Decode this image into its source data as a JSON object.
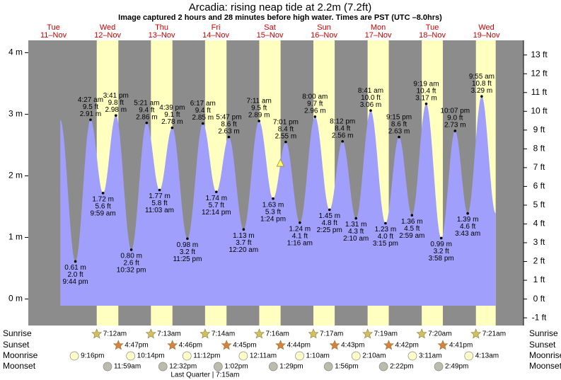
{
  "chart_data": {
    "type": "tide",
    "title": "Arcadia: rising  neap tide at 2.2m (7.2ft)",
    "subtitle": "Image captured 2 hours and 28 minutes before high water. Times are PST (UTC –8.0hrs)",
    "ylim": [
      -0.43,
      4.2
    ],
    "yticks": [
      {
        "value": 0,
        "label": "0 m"
      },
      {
        "value": 1,
        "label": "1 m"
      },
      {
        "value": 2,
        "label": "2 m"
      },
      {
        "value": 3,
        "label": "3 m"
      },
      {
        "value": 4,
        "label": "4 m"
      }
    ],
    "y2lim": [
      -1.41,
      13.78
    ],
    "y2ticks": [
      {
        "value": -1,
        "label": "-1 ft"
      },
      {
        "value": 0,
        "label": "0 ft"
      },
      {
        "value": 1,
        "label": "1 ft"
      },
      {
        "value": 2,
        "label": "2 ft"
      },
      {
        "value": 3,
        "label": "3 ft"
      },
      {
        "value": 4,
        "label": "4 ft"
      },
      {
        "value": 5,
        "label": "5 ft"
      },
      {
        "value": 6,
        "label": "6 ft"
      },
      {
        "value": 7,
        "label": "7 ft"
      },
      {
        "value": 8,
        "label": "8 ft"
      },
      {
        "value": 9,
        "label": "9 ft"
      },
      {
        "value": 10,
        "label": "10 ft"
      },
      {
        "value": 11,
        "label": "11 ft"
      },
      {
        "value": 12,
        "label": "12 ft"
      },
      {
        "value": 13,
        "label": "13 ft"
      }
    ],
    "row_labels": {
      "sunrise": "Sunrise",
      "sunset": "Sunset",
      "moonrise": "Moonrise",
      "moonset": "Moonset"
    },
    "colors": {
      "water": "#a0a0fc",
      "night": "#8c8c8c",
      "day": "#ffffc0",
      "date": "#cc0000",
      "sunrise": "#cfc25a",
      "sunset": "#d9803c",
      "moonrise": "#ffffc8",
      "moonset": "#bcbcac"
    },
    "days": [
      {
        "weekday": "Tue",
        "date": "11–Nov",
        "moonrise": "9:16pm",
        "tides": [
          {
            "time": "9:44 pm",
            "height_m": 0.61,
            "label_m": "0.61 m",
            "height_ft": 2.0,
            "label_ft": "2.0 ft"
          }
        ]
      },
      {
        "weekday": "Wed",
        "date": "12–Nov",
        "sunrise": "7:12am",
        "sunset": "4:47pm",
        "moonrise": "10:14pm",
        "moonset": "11:59am",
        "tides": [
          {
            "time": "4:27 am",
            "height_m": 2.91,
            "label_m": "2.91 m",
            "height_ft": 9.5,
            "label_ft": "9.5 ft"
          },
          {
            "time": "9:59 am",
            "height_m": 1.72,
            "label_m": "1.72 m",
            "height_ft": 5.6,
            "label_ft": "5.6 ft"
          },
          {
            "time": "3:41 pm",
            "height_m": 2.98,
            "label_m": "2.98 m",
            "height_ft": 9.8,
            "label_ft": "9.8 ft"
          },
          {
            "time": "10:32 pm",
            "height_m": 0.8,
            "label_m": "0.80 m",
            "height_ft": 2.6,
            "label_ft": "2.6 ft"
          }
        ]
      },
      {
        "weekday": "Thu",
        "date": "13–Nov",
        "sunrise": "7:13am",
        "sunset": "4:46pm",
        "moonrise": "11:12pm",
        "moonset": "12:32pm",
        "tides": [
          {
            "time": "5:21 am",
            "height_m": 2.86,
            "label_m": "2.86 m",
            "height_ft": 9.4,
            "label_ft": "9.4 ft"
          },
          {
            "time": "11:03 am",
            "height_m": 1.77,
            "label_m": "1.77 m",
            "height_ft": 5.8,
            "label_ft": "5.8 ft"
          },
          {
            "time": "4:39 pm",
            "height_m": 2.78,
            "label_m": "2.78 m",
            "height_ft": 9.1,
            "label_ft": "9.1 ft"
          },
          {
            "time": "11:25 pm",
            "height_m": 0.98,
            "label_m": "0.98 m",
            "height_ft": 3.2,
            "label_ft": "3.2 ft"
          }
        ]
      },
      {
        "weekday": "Fri",
        "date": "14–Nov",
        "sunrise": "7:14am",
        "sunset": "4:45pm",
        "moonset": "1:02pm",
        "moon_phase": "Last Quarter | 7:15am",
        "tides": [
          {
            "time": "6:17 am",
            "height_m": 2.85,
            "label_m": "2.85 m",
            "height_ft": 9.4,
            "label_ft": "9.4 ft"
          },
          {
            "time": "12:14 pm",
            "height_m": 1.74,
            "label_m": "1.74 m",
            "height_ft": 5.7,
            "label_ft": "5.7 ft"
          },
          {
            "time": "5:47 pm",
            "height_m": 2.63,
            "label_m": "2.63 m",
            "height_ft": 8.6,
            "label_ft": "8.6 ft"
          }
        ]
      },
      {
        "weekday": "Sat",
        "date": "15–Nov",
        "sunrise": "7:16am",
        "sunset": "4:44pm",
        "moonrise": "12:11am",
        "moonset": "1:29pm",
        "now_height_m": 2.2,
        "tides": [
          {
            "time": "12:20 am",
            "height_m": 1.13,
            "label_m": "1.13 m",
            "height_ft": 3.7,
            "label_ft": "3.7 ft"
          },
          {
            "time": "7:11 am",
            "height_m": 2.89,
            "label_m": "2.89 m",
            "height_ft": 9.5,
            "label_ft": "9.5 ft"
          },
          {
            "time": "1:24 pm",
            "height_m": 1.63,
            "label_m": "1.63 m",
            "height_ft": 5.3,
            "label_ft": "5.3 ft"
          },
          {
            "time": "7:01 pm",
            "height_m": 2.55,
            "label_m": "2.55 m",
            "height_ft": 8.4,
            "label_ft": "8.4 ft"
          }
        ]
      },
      {
        "weekday": "Sun",
        "date": "16–Nov",
        "sunrise": "7:17am",
        "sunset": "4:43pm",
        "moonrise": "1:10am",
        "moonset": "1:56pm",
        "tides": [
          {
            "time": "1:16 am",
            "height_m": 1.24,
            "label_m": "1.24 m",
            "height_ft": 4.1,
            "label_ft": "4.1 ft"
          },
          {
            "time": "8:00 am",
            "height_m": 2.96,
            "label_m": "2.96 m",
            "height_ft": 9.7,
            "label_ft": "9.7 ft"
          },
          {
            "time": "2:25 pm",
            "height_m": 1.45,
            "label_m": "1.45 m",
            "height_ft": 4.8,
            "label_ft": "4.8 ft"
          },
          {
            "time": "8:12 pm",
            "height_m": 2.56,
            "label_m": "2.56 m",
            "height_ft": 8.4,
            "label_ft": "8.4 ft"
          }
        ]
      },
      {
        "weekday": "Mon",
        "date": "17–Nov",
        "sunrise": "7:19am",
        "sunset": "4:42pm",
        "moonrise": "2:10am",
        "moonset": "2:22pm",
        "tides": [
          {
            "time": "2:10 am",
            "height_m": 1.31,
            "label_m": "1.31 m",
            "height_ft": 4.3,
            "label_ft": "4.3 ft"
          },
          {
            "time": "8:41 am",
            "height_m": 3.06,
            "label_m": "3.06 m",
            "height_ft": 10.0,
            "label_ft": "10.0 ft"
          },
          {
            "time": "3:15 pm",
            "height_m": 1.23,
            "label_m": "1.23 m",
            "height_ft": 4.0,
            "label_ft": "4.0 ft"
          },
          {
            "time": "9:15 pm",
            "height_m": 2.63,
            "label_m": "2.63 m",
            "height_ft": 8.6,
            "label_ft": "8.6 ft"
          }
        ]
      },
      {
        "weekday": "Tue",
        "date": "18–Nov",
        "sunrise": "7:20am",
        "sunset": "4:41pm",
        "moonrise": "3:11am",
        "moonset": "2:49pm",
        "tides": [
          {
            "time": "2:59 am",
            "height_m": 1.36,
            "label_m": "1.36 m",
            "height_ft": 4.5,
            "label_ft": "4.5 ft"
          },
          {
            "time": "9:19 am",
            "height_m": 3.17,
            "label_m": "3.17 m",
            "height_ft": 10.4,
            "label_ft": "10.4 ft"
          },
          {
            "time": "3:58 pm",
            "height_m": 0.99,
            "label_m": "0.99 m",
            "height_ft": 3.2,
            "label_ft": "3.2 ft"
          },
          {
            "time": "10:07 pm",
            "height_m": 2.73,
            "label_m": "2.73 m",
            "height_ft": 9.0,
            "label_ft": "9.0 ft"
          }
        ]
      },
      {
        "weekday": "Wed",
        "date": "19–Nov",
        "sunrise": "7:21am",
        "moonrise": "4:13am",
        "tides": [
          {
            "time": "3:43 am",
            "height_m": 1.39,
            "label_m": "1.39 m",
            "height_ft": 4.6,
            "label_ft": "4.6 ft"
          },
          {
            "time": "9:55 am",
            "height_m": 3.29,
            "label_m": "3.29 m",
            "height_ft": 10.8,
            "label_ft": "10.8 ft"
          }
        ]
      }
    ]
  }
}
